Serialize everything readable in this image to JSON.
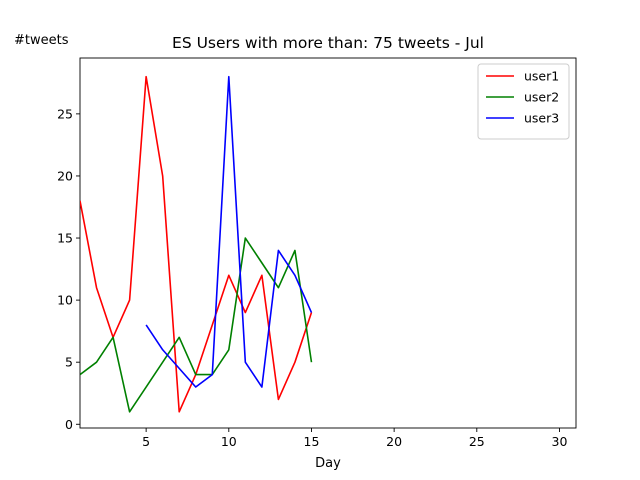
{
  "chart_data": {
    "type": "line",
    "title": "ES Users with more than: 75 tweets - Jul",
    "xlabel": "Day",
    "ylabel": "#tweets",
    "xlim": [
      1,
      31
    ],
    "ylim": [
      -0.3,
      29.5
    ],
    "xticks": [
      5,
      10,
      15,
      20,
      25,
      30
    ],
    "yticks": [
      0,
      5,
      10,
      15,
      20,
      25
    ],
    "grid": false,
    "legend_position": "top-right",
    "series": [
      {
        "name": "user1",
        "color": "#ff0000",
        "x": [
          1,
          2,
          3,
          4,
          5,
          6,
          7,
          8,
          9,
          10,
          11,
          12,
          13,
          14,
          15
        ],
        "y": [
          18,
          11,
          7,
          10,
          28,
          20,
          1,
          4,
          8,
          12,
          9,
          12,
          2,
          5,
          9
        ]
      },
      {
        "name": "user2",
        "color": "#008000",
        "x": [
          1,
          2,
          3,
          4,
          5,
          6,
          7,
          8,
          9,
          10,
          11,
          12,
          13,
          14,
          15
        ],
        "y": [
          4,
          5,
          7,
          1,
          3,
          5,
          7,
          4,
          4,
          6,
          15,
          13,
          11,
          14,
          5
        ]
      },
      {
        "name": "user3",
        "color": "#0000ff",
        "x": [
          5,
          6,
          7,
          8,
          9,
          10,
          11,
          12,
          13,
          14,
          15
        ],
        "y": [
          8,
          6,
          4.5,
          3,
          4,
          28,
          5,
          3,
          14,
          12,
          9
        ]
      }
    ]
  }
}
